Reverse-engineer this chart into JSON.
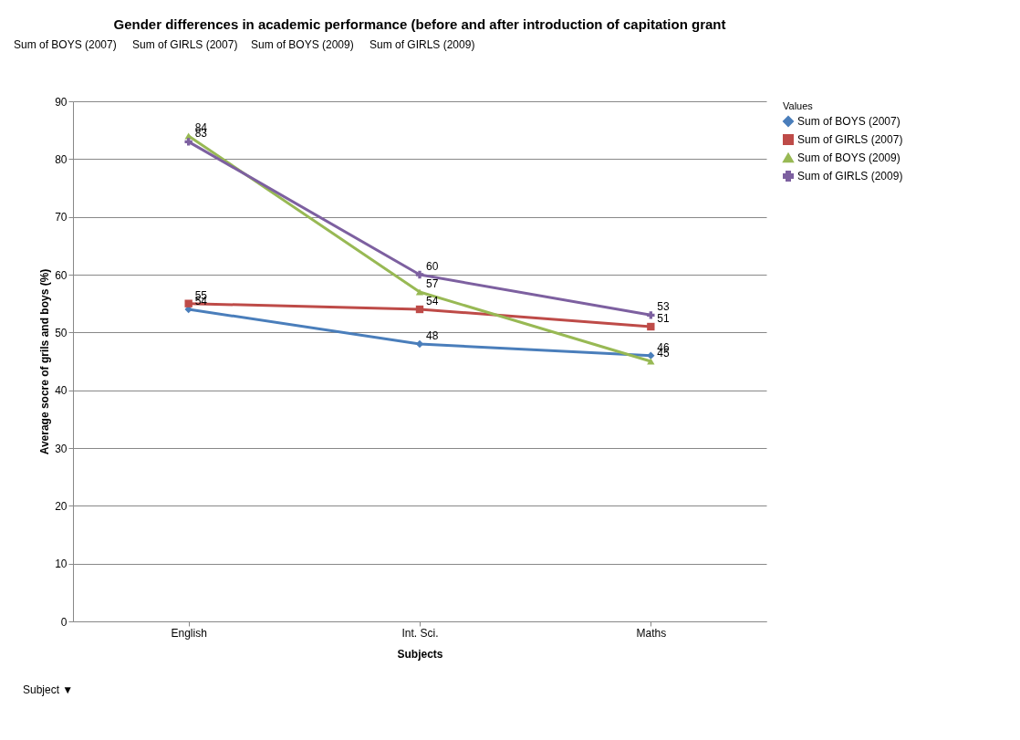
{
  "chart_data": {
    "type": "line",
    "title": "Gender differences in academic performance (before and after introduction of capitation grant",
    "xlabel": "Subjects",
    "ylabel": "Average socre of grils and boys (%)",
    "legend_title": "Values",
    "categories": [
      "English",
      "Int. Sci.",
      "Maths"
    ],
    "series": [
      {
        "name": "Sum of BOYS (2007)",
        "color": "#4a7ebb",
        "marker": "diamond",
        "values": [
          54,
          48,
          46
        ]
      },
      {
        "name": "Sum of GIRLS (2007)",
        "color": "#be4b48",
        "marker": "square",
        "values": [
          55,
          54,
          51
        ]
      },
      {
        "name": "Sum of BOYS (2009)",
        "color": "#98b954",
        "marker": "triangle",
        "values": [
          84,
          57,
          45
        ]
      },
      {
        "name": "Sum of GIRLS (2009)",
        "color": "#7d60a0",
        "marker": "cross",
        "values": [
          83,
          60,
          53
        ]
      }
    ],
    "ylim": [
      0,
      90
    ],
    "yticks": [
      0,
      10,
      20,
      30,
      40,
      50,
      60,
      70,
      80,
      90
    ],
    "grid": "y",
    "legend": "right",
    "data_labels": true,
    "line_style": "solid",
    "annotations": [
      "Sum of BOYS (2007)",
      "Sum of GIRLS (2007)",
      "Sum of BOYS (2009)",
      "Sum of GIRLS (2009)",
      "Subject ▼"
    ]
  }
}
